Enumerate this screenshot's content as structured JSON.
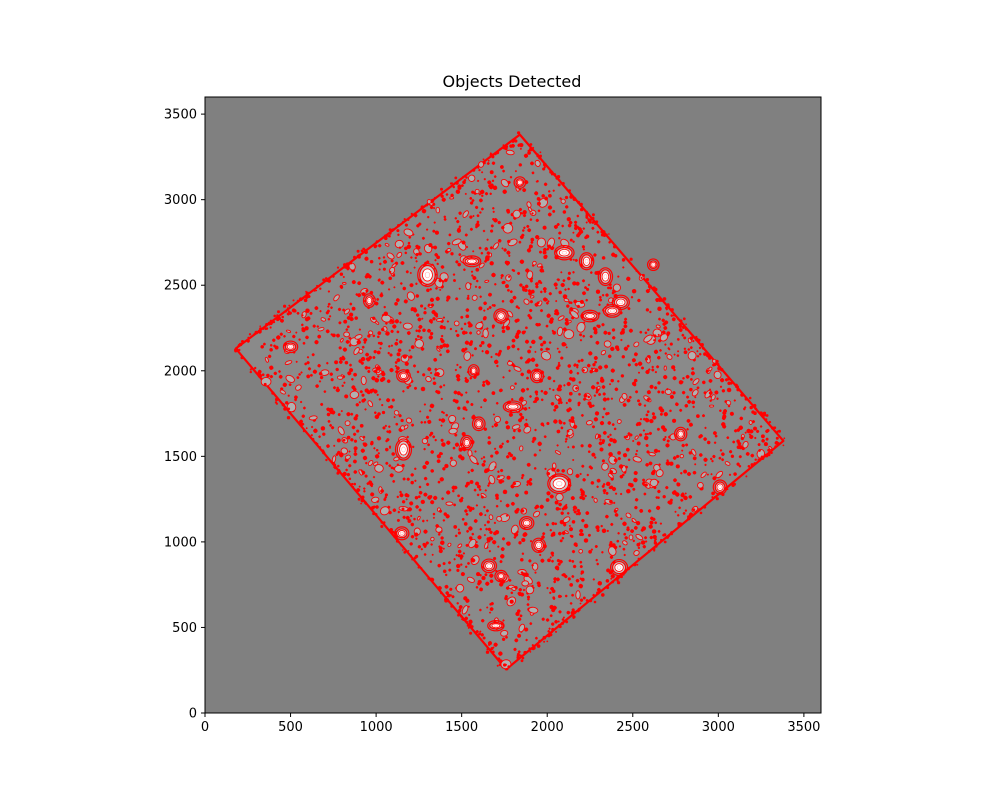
{
  "chart_data": {
    "type": "scatter",
    "title": "Objects Detected",
    "xlabel": "",
    "ylabel": "",
    "xlim": [
      0,
      3600
    ],
    "ylim": [
      0,
      3600
    ],
    "x_ticks": [
      0,
      500,
      1000,
      1500,
      2000,
      2500,
      3000,
      3500
    ],
    "y_ticks": [
      0,
      500,
      1000,
      1500,
      2000,
      2500,
      3000,
      3500
    ],
    "grid": false,
    "background_color": "#808080",
    "marker_color": "#ff0000",
    "footprint_color": "#8a8a8a",
    "footprint_corners": [
      [
        1840,
        3380
      ],
      [
        3380,
        1590
      ],
      [
        1760,
        255
      ],
      [
        180,
        2130
      ]
    ],
    "bright_sources": [
      {
        "x": 1300,
        "y": 2560,
        "rx": 45,
        "ry": 55
      },
      {
        "x": 2070,
        "y": 1340,
        "rx": 55,
        "ry": 45
      },
      {
        "x": 1160,
        "y": 1540,
        "rx": 35,
        "ry": 50
      },
      {
        "x": 2420,
        "y": 850,
        "rx": 38,
        "ry": 35
      },
      {
        "x": 2100,
        "y": 2690,
        "rx": 45,
        "ry": 30
      },
      {
        "x": 1800,
        "y": 1790,
        "rx": 45,
        "ry": 22
      },
      {
        "x": 1660,
        "y": 860,
        "rx": 32,
        "ry": 28
      },
      {
        "x": 3010,
        "y": 1320,
        "rx": 28,
        "ry": 30
      },
      {
        "x": 1730,
        "y": 2320,
        "rx": 30,
        "ry": 30
      },
      {
        "x": 1940,
        "y": 1970,
        "rx": 26,
        "ry": 28
      },
      {
        "x": 1160,
        "y": 1970,
        "rx": 28,
        "ry": 24
      },
      {
        "x": 2340,
        "y": 2550,
        "rx": 30,
        "ry": 40
      },
      {
        "x": 960,
        "y": 2410,
        "rx": 22,
        "ry": 28
      },
      {
        "x": 1150,
        "y": 1050,
        "rx": 30,
        "ry": 26
      },
      {
        "x": 2430,
        "y": 2400,
        "rx": 38,
        "ry": 30
      },
      {
        "x": 1600,
        "y": 1690,
        "rx": 25,
        "ry": 28
      },
      {
        "x": 1560,
        "y": 2640,
        "rx": 40,
        "ry": 20
      },
      {
        "x": 500,
        "y": 2140,
        "rx": 30,
        "ry": 22
      },
      {
        "x": 2230,
        "y": 2640,
        "rx": 30,
        "ry": 38
      },
      {
        "x": 1880,
        "y": 1110,
        "rx": 30,
        "ry": 26
      },
      {
        "x": 2250,
        "y": 2320,
        "rx": 40,
        "ry": 22
      },
      {
        "x": 1730,
        "y": 800,
        "rx": 24,
        "ry": 22
      },
      {
        "x": 1700,
        "y": 510,
        "rx": 36,
        "ry": 18
      },
      {
        "x": 2380,
        "y": 2350,
        "rx": 40,
        "ry": 25
      },
      {
        "x": 1530,
        "y": 1580,
        "rx": 24,
        "ry": 30
      },
      {
        "x": 1950,
        "y": 980,
        "rx": 28,
        "ry": 30
      },
      {
        "x": 2780,
        "y": 1630,
        "rx": 24,
        "ry": 28
      },
      {
        "x": 2620,
        "y": 2620,
        "rx": 22,
        "ry": 22
      },
      {
        "x": 1840,
        "y": 3100,
        "rx": 22,
        "ry": 22
      },
      {
        "x": 1570,
        "y": 2000,
        "rx": 20,
        "ry": 24
      }
    ]
  }
}
